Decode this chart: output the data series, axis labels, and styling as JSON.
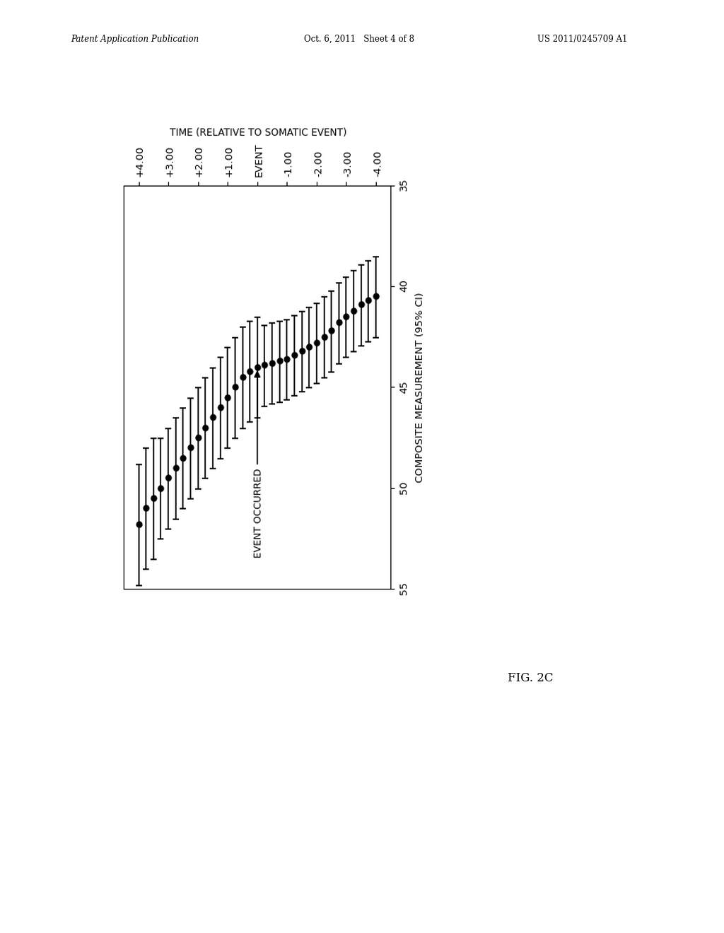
{
  "time_points": [
    -4.0,
    -3.75,
    -3.5,
    -3.25,
    -3.0,
    -2.75,
    -2.5,
    -2.25,
    -2.0,
    -1.75,
    -1.5,
    -1.25,
    -1.0,
    -0.75,
    -0.5,
    -0.25,
    0.0,
    0.25,
    0.5,
    0.75,
    1.0,
    1.25,
    1.5,
    1.75,
    2.0,
    2.25,
    2.5,
    2.75,
    3.0,
    3.25,
    3.5,
    3.75,
    4.0
  ],
  "center_values": [
    40.5,
    40.7,
    40.9,
    41.2,
    41.5,
    41.8,
    42.2,
    42.5,
    42.8,
    43.0,
    43.2,
    43.4,
    43.6,
    43.7,
    43.8,
    43.9,
    44.0,
    44.2,
    44.5,
    45.0,
    45.5,
    46.0,
    46.5,
    47.0,
    47.5,
    48.0,
    48.5,
    49.0,
    49.5,
    50.0,
    50.5,
    51.0,
    51.8
  ],
  "xerr_lower": [
    2.0,
    2.0,
    2.0,
    2.0,
    2.0,
    2.0,
    2.0,
    2.0,
    2.0,
    2.0,
    2.0,
    2.0,
    2.0,
    2.0,
    2.0,
    2.0,
    2.5,
    2.5,
    2.5,
    2.5,
    2.5,
    2.5,
    2.5,
    2.5,
    2.5,
    2.5,
    2.5,
    2.5,
    2.5,
    2.5,
    3.0,
    3.0,
    3.0
  ],
  "xerr_upper": [
    2.0,
    2.0,
    2.0,
    2.0,
    2.0,
    2.0,
    2.0,
    2.0,
    2.0,
    2.0,
    2.0,
    2.0,
    2.0,
    2.0,
    2.0,
    2.0,
    2.5,
    2.5,
    2.5,
    2.5,
    2.5,
    2.5,
    2.5,
    2.5,
    2.5,
    2.5,
    2.5,
    2.5,
    2.5,
    2.5,
    3.0,
    3.0,
    3.0
  ],
  "composite_label": "COMPOSITE MEASUREMENT (95% CI)",
  "time_label": "TIME (RELATIVE TO SOMATIC EVENT)",
  "y_ticks": [
    35,
    40,
    45,
    50,
    55
  ],
  "time_ticks": [
    -4.0,
    -3.0,
    -2.0,
    -1.0,
    0.0,
    1.0,
    2.0,
    3.0,
    4.0
  ],
  "time_tick_labels": [
    "-4.00",
    "-3.00",
    "-2.00",
    "-1.00",
    "EVENT",
    "+1.00",
    "+2.00",
    "+3.00",
    "+4.00"
  ],
  "annotation_text": "EVENT OCCURRED",
  "event_composite": 44.0,
  "event_time": 0.0,
  "figure_title_left": "Patent Application Publication",
  "figure_title_center": "Oct. 6, 2011   Sheet 4 of 8",
  "figure_title_right": "US 2011/0245709 A1",
  "fig_label": "FIG. 2C",
  "background_color": "#ffffff",
  "data_color": "#000000",
  "composite_xlim": [
    35,
    55
  ],
  "time_ylim": [
    -4.5,
    4.5
  ]
}
